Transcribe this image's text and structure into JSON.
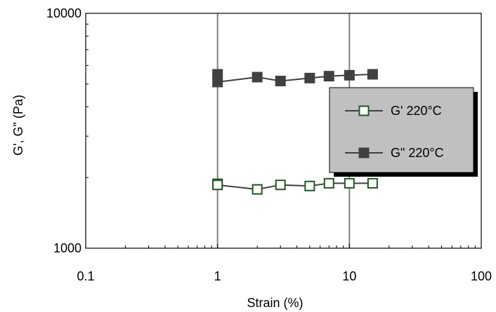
{
  "chart_data": {
    "type": "line",
    "xlabel": "Strain (%)",
    "ylabel": "G', G\" (Pa)",
    "xscale": "log",
    "yscale": "log",
    "xlim": [
      0.1,
      100
    ],
    "ylim": [
      1000,
      10000
    ],
    "x_ticks": [
      {
        "value": 0.1,
        "label": "0.1"
      },
      {
        "value": 1,
        "label": "1"
      },
      {
        "value": 10,
        "label": "10"
      },
      {
        "value": 100,
        "label": "100"
      }
    ],
    "y_ticks": [
      {
        "value": 1000,
        "label": "1000"
      },
      {
        "value": 10000,
        "label": "10000"
      }
    ],
    "vertical_gridlines_at": [
      1,
      10
    ],
    "legend_position": "right",
    "series": [
      {
        "name": "G' 220°C",
        "marker": "open-square",
        "color": "#1e5a1e",
        "line_color": "#404040",
        "x": [
          1,
          1,
          2,
          3,
          5,
          7,
          10,
          15
        ],
        "y": [
          1880,
          1860,
          1780,
          1860,
          1840,
          1890,
          1890,
          1890
        ]
      },
      {
        "name": "G\" 220°C",
        "marker": "filled-square",
        "color": "#404040",
        "line_color": "#404040",
        "x": [
          1,
          1,
          2,
          3,
          5,
          7,
          10,
          15
        ],
        "y": [
          5500,
          5100,
          5350,
          5150,
          5300,
          5400,
          5450,
          5500
        ]
      }
    ]
  }
}
